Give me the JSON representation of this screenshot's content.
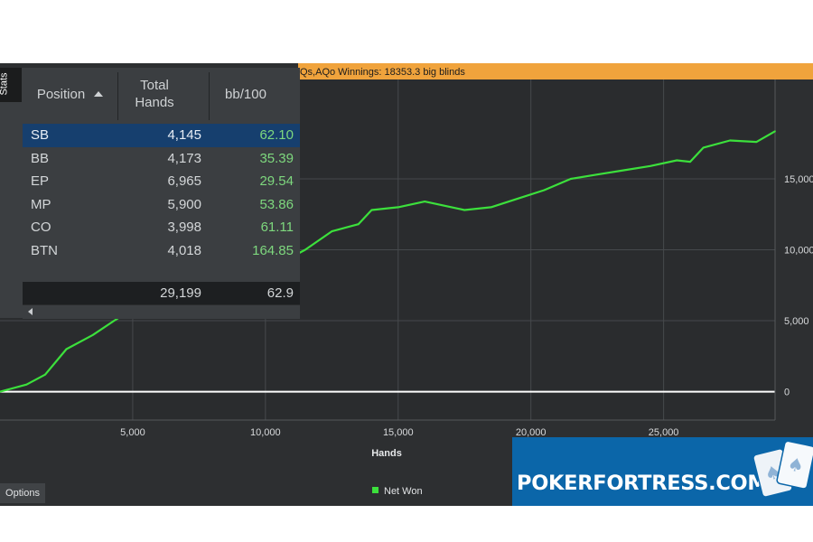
{
  "stats_panel": {
    "tab_label": "Stats",
    "columns": [
      {
        "label": "Position"
      },
      {
        "label": "Total\nHands"
      },
      {
        "label": "bb/100"
      }
    ],
    "rows": [
      {
        "position": "SB",
        "hands": "4,145",
        "bb100": "62.10"
      },
      {
        "position": "BB",
        "hands": "4,173",
        "bb100": "35.39"
      },
      {
        "position": "EP",
        "hands": "6,965",
        "bb100": "29.54"
      },
      {
        "position": "MP",
        "hands": "5,900",
        "bb100": "53.86"
      },
      {
        "position": "CO",
        "hands": "3,998",
        "bb100": "61.11"
      },
      {
        "position": "BTN",
        "hands": "4,018",
        "bb100": "164.85"
      }
    ],
    "selected_row": "SB",
    "totals": {
      "hands": "29,199",
      "bb100": "62.9"
    }
  },
  "chart_header": {
    "text": "Qs,AQo  Winnings:  18353.3 big blinds"
  },
  "options_button": {
    "label": "Options"
  },
  "promo": {
    "text": "POKERFORTRESS.COM"
  },
  "colors": {
    "background": "#2d2f31",
    "accent_bar": "#f0a33c",
    "net_won_line": "#3ce03c",
    "selected_row": "#163f6e",
    "promo_bg": "#0b66a9"
  },
  "chart_data": {
    "type": "line",
    "xlabel": "Hands",
    "ylabel": "",
    "x_ticks": [
      5000,
      10000,
      15000,
      20000,
      25000
    ],
    "x_tick_labels": [
      "5,000",
      "10,000",
      "15,000",
      "20,000",
      "25,000"
    ],
    "y_ticks": [
      0,
      5000,
      10000,
      15000
    ],
    "y_tick_labels": [
      "0",
      "5,000",
      "10,000",
      "15,000"
    ],
    "xlim": [
      0,
      29199
    ],
    "ylim": [
      -2000,
      22000
    ],
    "y_axis_side": "right",
    "grid": true,
    "legend": "bottom-center",
    "series": [
      {
        "name": "Net Won",
        "x": [
          0,
          1000,
          1700,
          2500,
          3500,
          4300,
          5500,
          7000,
          8500,
          10000,
          11000,
          11500,
          12500,
          13500,
          14000,
          15000,
          16000,
          16500,
          17500,
          18500,
          19500,
          20500,
          21500,
          22500,
          23500,
          24500,
          25500,
          26000,
          26500,
          27500,
          28500,
          29199
        ],
        "y": [
          0,
          500,
          1200,
          3000,
          4000,
          5000,
          6400,
          7600,
          8300,
          8800,
          9500,
          10000,
          11300,
          11800,
          12800,
          13000,
          13400,
          13200,
          12800,
          13000,
          13600,
          14200,
          15000,
          15300,
          15600,
          15900,
          16300,
          16200,
          17200,
          17700,
          17600,
          18353
        ]
      }
    ]
  }
}
